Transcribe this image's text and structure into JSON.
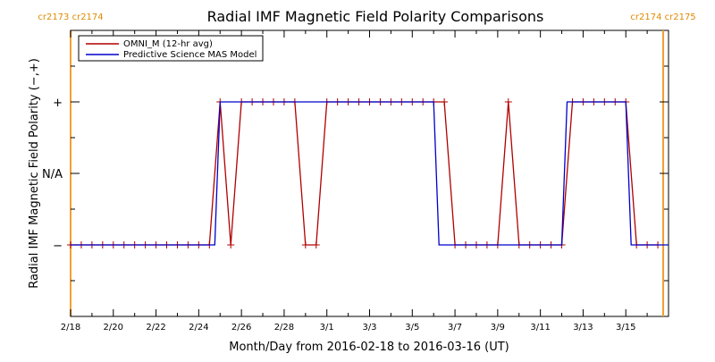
{
  "chart_data": {
    "type": "line",
    "title": "Radial IMF Magnetic Field Polarity Comparisons",
    "xlabel": "Month/Day from 2016-02-18 to 2016-03-16 (UT)",
    "ylabel": "Radial IMF Magnetic Field Polarity (−,+)",
    "x_tick_labels": [
      "2/18",
      "2/20",
      "2/22",
      "2/24",
      "2/26",
      "2/28",
      "3/1",
      "3/3",
      "3/5",
      "3/7",
      "3/9",
      "3/11",
      "3/13",
      "3/15"
    ],
    "y_tick_labels": [
      "−",
      "N/A",
      "+"
    ],
    "y_values_meaning": {
      "-1": "−",
      "0": "N/A",
      "1": "+"
    },
    "xlim": [
      "2016-02-18",
      "2016-03-17"
    ],
    "ylim": [
      -2,
      2
    ],
    "carrington_markers": [
      {
        "date": "2016-02-18",
        "label": "cr2173 cr2174",
        "color": "#f0a030"
      },
      {
        "date": "2016-03-16 18:00",
        "label": "cr2174 cr2175",
        "color": "#f0a030"
      }
    ],
    "legend_position": "top-left",
    "series": [
      {
        "name": "OMNI_M (12-hr avg)",
        "color": "#b00000",
        "style": "line+plus-markers",
        "points": [
          [
            "2016-02-18 00:00",
            -1
          ],
          [
            "2016-02-18 12:00",
            -1
          ],
          [
            "2016-02-19 00:00",
            -1
          ],
          [
            "2016-02-19 12:00",
            -1
          ],
          [
            "2016-02-20 00:00",
            -1
          ],
          [
            "2016-02-20 12:00",
            -1
          ],
          [
            "2016-02-21 00:00",
            -1
          ],
          [
            "2016-02-21 12:00",
            -1
          ],
          [
            "2016-02-22 00:00",
            -1
          ],
          [
            "2016-02-22 12:00",
            -1
          ],
          [
            "2016-02-23 00:00",
            -1
          ],
          [
            "2016-02-23 12:00",
            -1
          ],
          [
            "2016-02-24 00:00",
            -1
          ],
          [
            "2016-02-24 12:00",
            -1
          ],
          [
            "2016-02-25 00:00",
            1
          ],
          [
            "2016-02-25 12:00",
            -1
          ],
          [
            "2016-02-26 00:00",
            1
          ],
          [
            "2016-02-26 12:00",
            1
          ],
          [
            "2016-02-27 00:00",
            1
          ],
          [
            "2016-02-27 12:00",
            1
          ],
          [
            "2016-02-28 00:00",
            1
          ],
          [
            "2016-02-28 12:00",
            1
          ],
          [
            "2016-02-29 00:00",
            -1
          ],
          [
            "2016-02-29 12:00",
            -1
          ],
          [
            "2016-03-01 00:00",
            1
          ],
          [
            "2016-03-01 12:00",
            1
          ],
          [
            "2016-03-02 00:00",
            1
          ],
          [
            "2016-03-02 12:00",
            1
          ],
          [
            "2016-03-03 00:00",
            1
          ],
          [
            "2016-03-03 12:00",
            1
          ],
          [
            "2016-03-04 00:00",
            1
          ],
          [
            "2016-03-04 12:00",
            1
          ],
          [
            "2016-03-05 00:00",
            1
          ],
          [
            "2016-03-05 12:00",
            1
          ],
          [
            "2016-03-06 00:00",
            1
          ],
          [
            "2016-03-06 12:00",
            1
          ],
          [
            "2016-03-07 00:00",
            -1
          ],
          [
            "2016-03-07 12:00",
            -1
          ],
          [
            "2016-03-08 00:00",
            -1
          ],
          [
            "2016-03-08 12:00",
            -1
          ],
          [
            "2016-03-09 00:00",
            -1
          ],
          [
            "2016-03-09 12:00",
            1
          ],
          [
            "2016-03-10 00:00",
            -1
          ],
          [
            "2016-03-10 12:00",
            -1
          ],
          [
            "2016-03-11 00:00",
            -1
          ],
          [
            "2016-03-11 12:00",
            -1
          ],
          [
            "2016-03-12 00:00",
            -1
          ],
          [
            "2016-03-12 12:00",
            1
          ],
          [
            "2016-03-13 00:00",
            1
          ],
          [
            "2016-03-13 12:00",
            1
          ],
          [
            "2016-03-14 00:00",
            1
          ],
          [
            "2016-03-14 12:00",
            1
          ],
          [
            "2016-03-15 00:00",
            1
          ],
          [
            "2016-03-15 12:00",
            -1
          ],
          [
            "2016-03-16 00:00",
            -1
          ],
          [
            "2016-03-16 12:00",
            -1
          ]
        ]
      },
      {
        "name": "Predictive Science MAS Model",
        "color": "#0000cc",
        "style": "line",
        "points": [
          [
            "2016-02-18 00:00",
            -1
          ],
          [
            "2016-02-24 18:00",
            -1
          ],
          [
            "2016-02-25 00:00",
            1
          ],
          [
            "2016-03-06 00:00",
            1
          ],
          [
            "2016-03-06 06:00",
            -1
          ],
          [
            "2016-03-12 00:00",
            -1
          ],
          [
            "2016-03-12 06:00",
            1
          ],
          [
            "2016-03-15 00:00",
            1
          ],
          [
            "2016-03-15 06:00",
            -1
          ],
          [
            "2016-03-17 00:00",
            -1
          ]
        ]
      }
    ]
  }
}
